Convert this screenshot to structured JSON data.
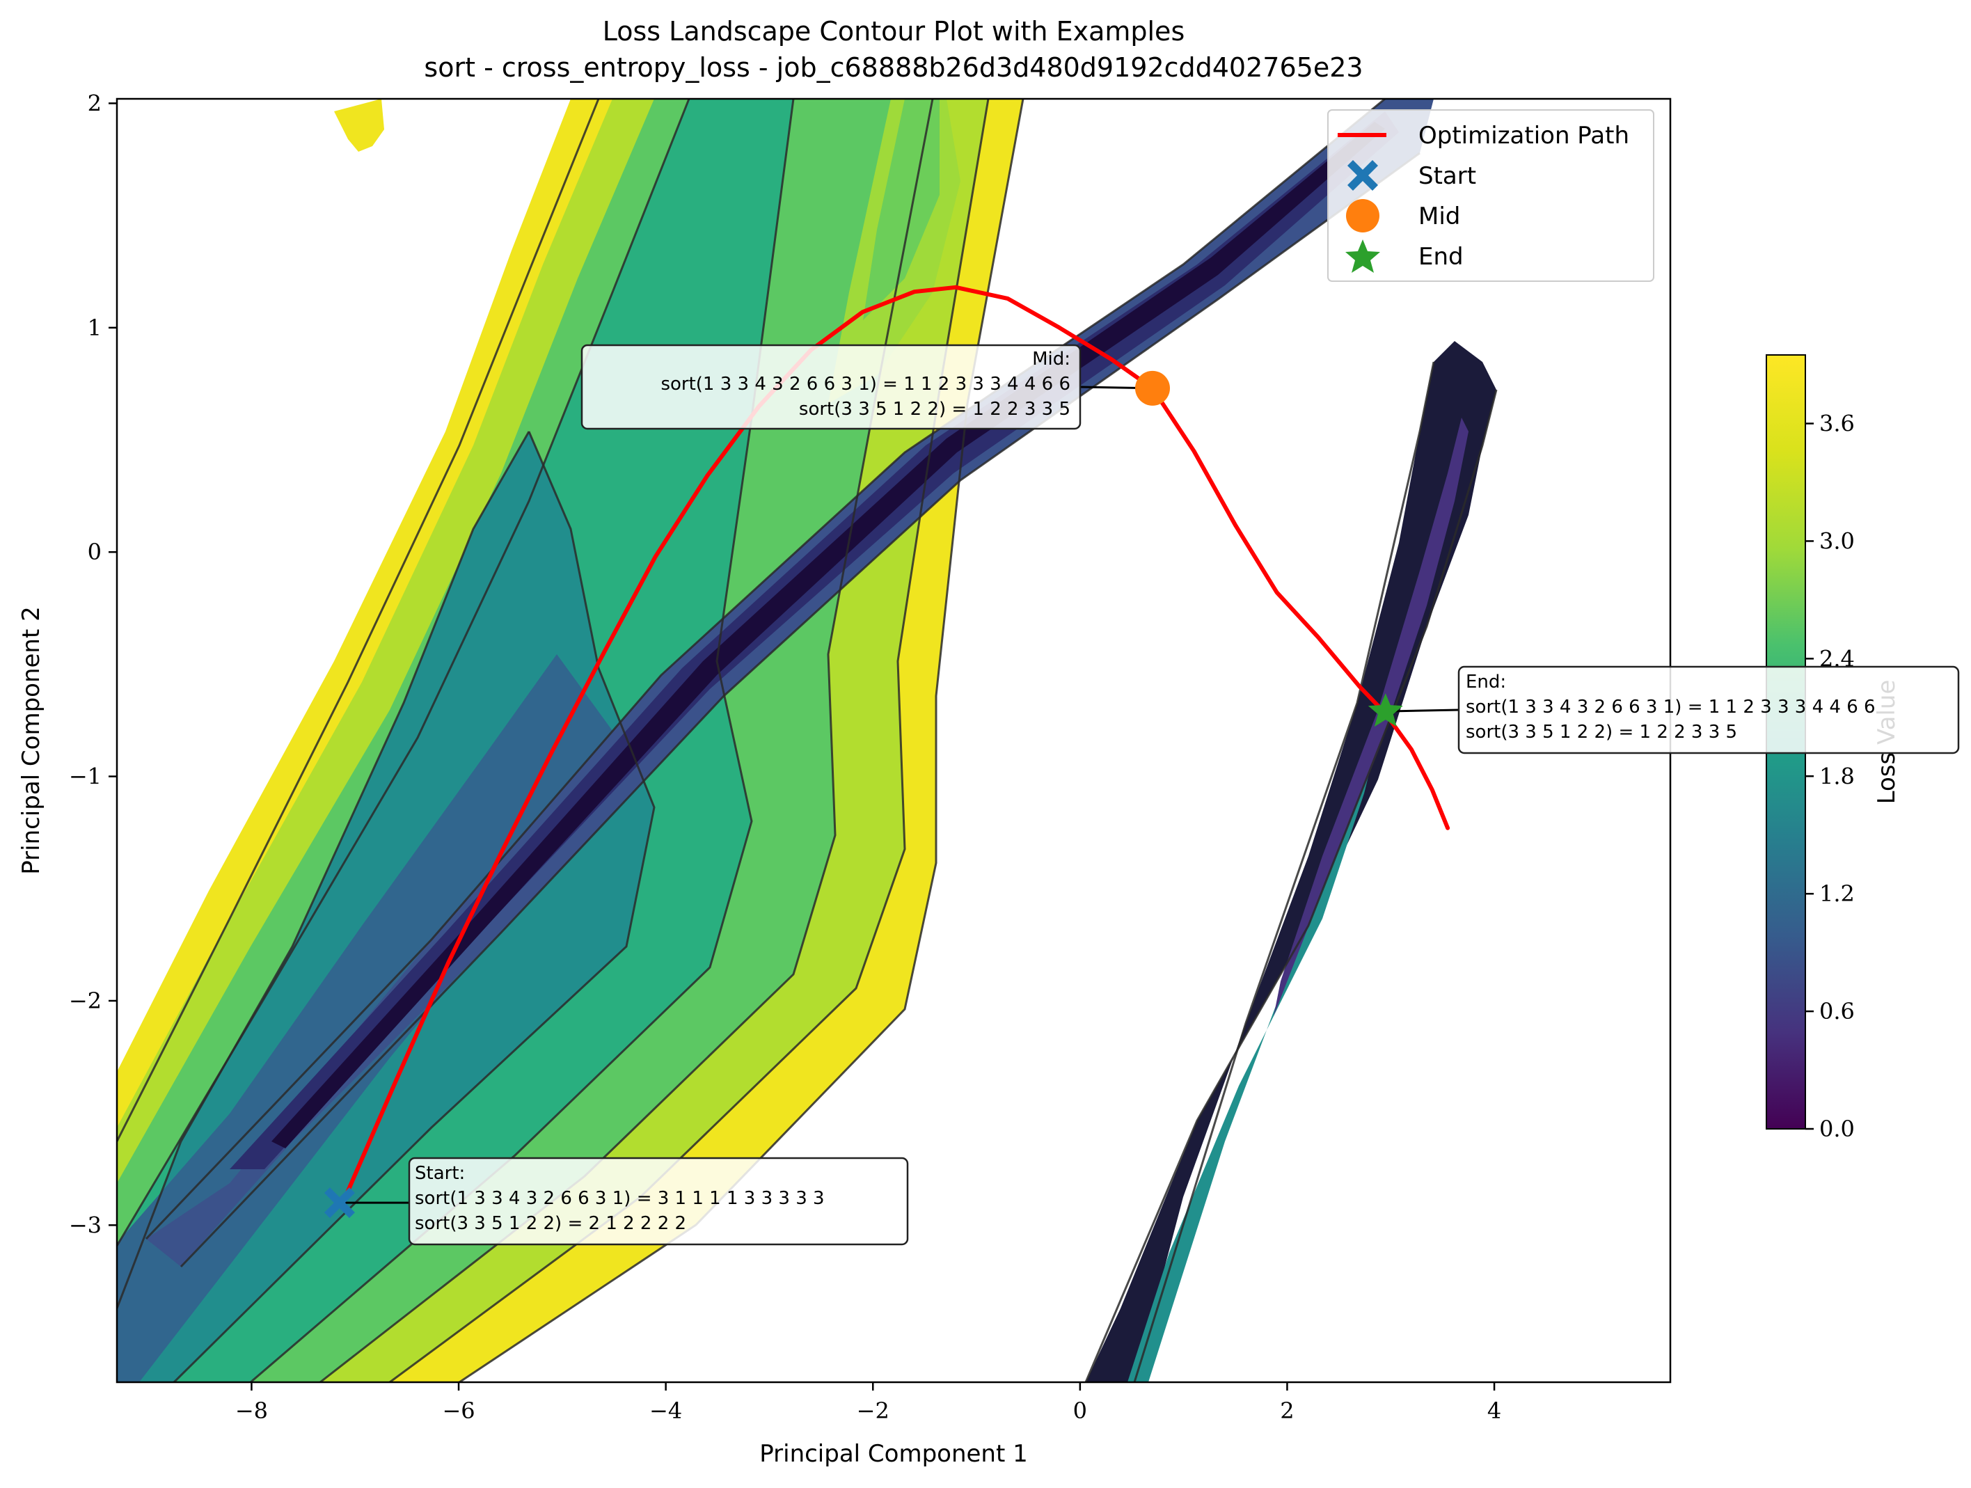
{
  "chart_data": {
    "type": "contour",
    "title": "Loss Landscape Contour Plot with Examples",
    "subtitle": "sort - cross_entropy_loss - job_c68888b26d3d480d9192cdd402765e23",
    "xlabel": "Principal Component 1",
    "ylabel": "Principal Component 2",
    "xlim": [
      -9.3,
      5.7
    ],
    "ylim": [
      -3.7,
      2.02
    ],
    "xticks": [
      -8,
      -6,
      -4,
      -2,
      0,
      2,
      4
    ],
    "yticks": [
      -3,
      -2,
      -1,
      0,
      1,
      2
    ],
    "xtick_labels": [
      "−8",
      "−6",
      "−4",
      "−2",
      "0",
      "2",
      "4"
    ],
    "ytick_labels": [
      "−3",
      "−2",
      "−1",
      "0",
      "1",
      "2"
    ],
    "colorbar": {
      "label": "Loss Value",
      "range": [
        0.0,
        3.95
      ],
      "ticks": [
        0.0,
        0.6,
        1.2,
        1.8,
        2.4,
        3.0,
        3.6
      ],
      "tick_labels": [
        "0.0",
        "0.6",
        "1.2",
        "1.8",
        "2.4",
        "3.0",
        "3.6"
      ],
      "colormap": "viridis"
    },
    "legend": {
      "placement": "upper-right",
      "entries": [
        {
          "label": "Optimization Path",
          "marker": "line",
          "color": "#ff0000"
        },
        {
          "label": "Start",
          "marker": "X",
          "color": "#1f77b4"
        },
        {
          "label": "Mid",
          "marker": "circle",
          "color": "#ff7f0e"
        },
        {
          "label": "End",
          "marker": "star",
          "color": "#2ca02c"
        }
      ]
    },
    "path": {
      "name": "Optimization Path",
      "color": "#ff0000",
      "x": [
        -7.1,
        -6.6,
        -6.1,
        -5.6,
        -5.1,
        -4.6,
        -4.1,
        -3.6,
        -3.1,
        -2.6,
        -2.1,
        -1.6,
        -1.2,
        -0.7,
        -0.2,
        0.3,
        0.7,
        1.1,
        1.5,
        1.9,
        2.3,
        2.7,
        2.95,
        3.2,
        3.4,
        3.55
      ],
      "y": [
        -2.88,
        -2.35,
        -1.83,
        -1.35,
        -0.89,
        -0.45,
        -0.02,
        0.34,
        0.65,
        0.9,
        1.07,
        1.16,
        1.18,
        1.13,
        1.0,
        0.86,
        0.73,
        0.45,
        0.12,
        -0.18,
        -0.38,
        -0.6,
        -0.72,
        -0.88,
        -1.06,
        -1.23
      ]
    },
    "markers": {
      "start": {
        "x": -7.15,
        "y": -2.9,
        "color": "#1f77b4"
      },
      "mid": {
        "x": 0.7,
        "y": 0.73,
        "color": "#ff7f0e"
      },
      "end": {
        "x": 2.95,
        "y": -0.71,
        "color": "#2ca02c"
      }
    },
    "annotations": [
      {
        "id": "mid",
        "align": "right",
        "lines": [
          "Mid:",
          "sort(1 3 3 4 3 2 6 6 3 1) = 1 1 2 3 3 3 4 4 6 6",
          "sort(3 3 5 1 2 2) = 1 2 2 3 3 5"
        ]
      },
      {
        "id": "end",
        "align": "left",
        "lines": [
          "End:",
          "sort(1 3 3 4 3 2 6 6 3 1) = 1 1 2 3 3 3 4 4 6 6",
          "sort(3 3 5 1 2 2) = 1 2 2 3 3 5"
        ]
      },
      {
        "id": "start",
        "align": "left",
        "lines": [
          "Start:",
          "sort(1 3 3 4 3 2 6 6 3 1) = 3 1 1 1 1 3 3 3 3 3",
          "sort(3 3 5 1 2 2) = 2 1 2 2 2 2"
        ]
      }
    ],
    "grid": false
  }
}
